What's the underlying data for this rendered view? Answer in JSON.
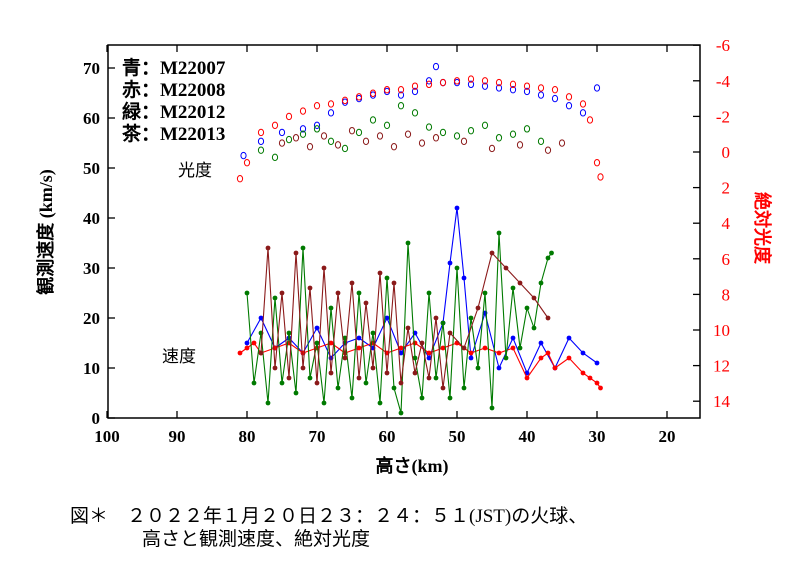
{
  "chart_data": {
    "type": "scatter+line",
    "xlabel": "高さ(km)",
    "ylabel_left": "観測速度 (km/s)",
    "ylabel_right": "絶対光度",
    "x_ticks": [
      100,
      90,
      80,
      70,
      60,
      50,
      40,
      30,
      20
    ],
    "xlim": [
      100,
      15
    ],
    "y_left_ticks": [
      0,
      10,
      20,
      30,
      40,
      50,
      60,
      70
    ],
    "ylim_left": [
      0,
      75
    ],
    "y_right_ticks": [
      -6,
      -4,
      -2,
      0,
      2,
      4,
      6,
      8,
      10,
      12,
      14
    ],
    "ylim_right": [
      15,
      -6
    ],
    "annotations": {
      "brightness": "光度",
      "velocity": "速度"
    },
    "legend": [
      {
        "label": "青：M22007",
        "color": "#0000ff"
      },
      {
        "label": "赤：M22008",
        "color": "#ff0000"
      },
      {
        "label": "緑：M22012",
        "color": "#007a00"
      },
      {
        "label": "茶：M22013",
        "color": "#8b1a1a"
      }
    ],
    "series": [
      {
        "name": "M22007",
        "color": "#0000ff",
        "magnitude": [
          [
            80.5,
            0.2
          ],
          [
            78,
            -0.6
          ],
          [
            75,
            -1.1
          ],
          [
            72,
            -1.3
          ],
          [
            70,
            -1.5
          ],
          [
            68,
            -2.2
          ],
          [
            66,
            -2.8
          ],
          [
            64,
            -3.0
          ],
          [
            62,
            -3.2
          ],
          [
            60,
            -3.4
          ],
          [
            58,
            -3.2
          ],
          [
            56,
            -3.4
          ],
          [
            54,
            -4.0
          ],
          [
            53,
            -4.8
          ],
          [
            52,
            -3.9
          ],
          [
            50,
            -3.9
          ],
          [
            48,
            -3.8
          ],
          [
            46,
            -3.7
          ],
          [
            44,
            -3.6
          ],
          [
            42,
            -3.5
          ],
          [
            40,
            -3.4
          ],
          [
            38,
            -3.2
          ],
          [
            36,
            -3.0
          ],
          [
            34,
            -2.6
          ],
          [
            32,
            -2.2
          ],
          [
            30,
            -3.6
          ]
        ],
        "velocity": [
          [
            80,
            15
          ],
          [
            78,
            20
          ],
          [
            76,
            14
          ],
          [
            74,
            16
          ],
          [
            72,
            13
          ],
          [
            70,
            18
          ],
          [
            68,
            12
          ],
          [
            66,
            15
          ],
          [
            64,
            16
          ],
          [
            62,
            14
          ],
          [
            60,
            20
          ],
          [
            58,
            13
          ],
          [
            56,
            17
          ],
          [
            54,
            12
          ],
          [
            52,
            19
          ],
          [
            51,
            31
          ],
          [
            50,
            42
          ],
          [
            49,
            28
          ],
          [
            48,
            12
          ],
          [
            46,
            21
          ],
          [
            44,
            10
          ],
          [
            42,
            16
          ],
          [
            40,
            9
          ],
          [
            38,
            15
          ],
          [
            36,
            10
          ],
          [
            34,
            16
          ],
          [
            32,
            13
          ],
          [
            30,
            11
          ]
        ]
      },
      {
        "name": "M22008",
        "color": "#ff0000",
        "magnitude": [
          [
            81,
            1.5
          ],
          [
            80,
            0.6
          ],
          [
            78,
            -1.1
          ],
          [
            76,
            -1.5
          ],
          [
            74,
            -2.0
          ],
          [
            72,
            -2.3
          ],
          [
            70,
            -2.6
          ],
          [
            68,
            -2.7
          ],
          [
            66,
            -2.9
          ],
          [
            64,
            -3.1
          ],
          [
            62,
            -3.3
          ],
          [
            60,
            -3.5
          ],
          [
            58,
            -3.5
          ],
          [
            56,
            -3.7
          ],
          [
            54,
            -3.8
          ],
          [
            52,
            -3.9
          ],
          [
            50,
            -4.0
          ],
          [
            48,
            -4.1
          ],
          [
            46,
            -4.0
          ],
          [
            44,
            -3.9
          ],
          [
            42,
            -3.8
          ],
          [
            40,
            -3.7
          ],
          [
            38,
            -3.6
          ],
          [
            36,
            -3.5
          ],
          [
            34,
            -3.1
          ],
          [
            32,
            -2.7
          ],
          [
            31,
            -1.8
          ],
          [
            30,
            0.6
          ],
          [
            29.5,
            1.4
          ]
        ],
        "velocity": [
          [
            81,
            13
          ],
          [
            80,
            14
          ],
          [
            79,
            15
          ],
          [
            78,
            13
          ],
          [
            76,
            14
          ],
          [
            74,
            15
          ],
          [
            72,
            13
          ],
          [
            70,
            14
          ],
          [
            68,
            15
          ],
          [
            66,
            13
          ],
          [
            64,
            14
          ],
          [
            62,
            15
          ],
          [
            60,
            13
          ],
          [
            58,
            14
          ],
          [
            56,
            15
          ],
          [
            54,
            13
          ],
          [
            52,
            14
          ],
          [
            50,
            15
          ],
          [
            48,
            13
          ],
          [
            46,
            14
          ],
          [
            44,
            13
          ],
          [
            42,
            14
          ],
          [
            40,
            8
          ],
          [
            38,
            12
          ],
          [
            37,
            13
          ],
          [
            36,
            10
          ],
          [
            34,
            12
          ],
          [
            32,
            9
          ],
          [
            31,
            8
          ],
          [
            30,
            7
          ],
          [
            29.5,
            6
          ]
        ]
      },
      {
        "name": "M22012",
        "color": "#007a00",
        "magnitude": [
          [
            78,
            -0.1
          ],
          [
            76,
            0.3
          ],
          [
            74,
            -0.7
          ],
          [
            72,
            -1.0
          ],
          [
            70,
            -1.3
          ],
          [
            68,
            -0.6
          ],
          [
            66,
            -0.2
          ],
          [
            64,
            -1.1
          ],
          [
            62,
            -1.8
          ],
          [
            60,
            -1.5
          ],
          [
            58,
            -2.6
          ],
          [
            56,
            -2.2
          ],
          [
            54,
            -1.4
          ],
          [
            52,
            -1.1
          ],
          [
            50,
            -0.9
          ],
          [
            48,
            -1.2
          ],
          [
            46,
            -1.5
          ],
          [
            44,
            -0.8
          ],
          [
            42,
            -1.0
          ],
          [
            40,
            -1.3
          ],
          [
            38,
            -0.6
          ]
        ],
        "velocity": [
          [
            80,
            25
          ],
          [
            79,
            7
          ],
          [
            78,
            17
          ],
          [
            77,
            3
          ],
          [
            76,
            24
          ],
          [
            75,
            7
          ],
          [
            74,
            17
          ],
          [
            73,
            5
          ],
          [
            72,
            34
          ],
          [
            71,
            8
          ],
          [
            70,
            15
          ],
          [
            69,
            3
          ],
          [
            68,
            22
          ],
          [
            67,
            6
          ],
          [
            66,
            16
          ],
          [
            65,
            4
          ],
          [
            64,
            25
          ],
          [
            63,
            7
          ],
          [
            62,
            17
          ],
          [
            61,
            3
          ],
          [
            60,
            28
          ],
          [
            59,
            6
          ],
          [
            58,
            1
          ],
          [
            57,
            35
          ],
          [
            56,
            12
          ],
          [
            55,
            4
          ],
          [
            54,
            25
          ],
          [
            53,
            8
          ],
          [
            52,
            19
          ],
          [
            51,
            4
          ],
          [
            50,
            30
          ],
          [
            49,
            6
          ],
          [
            48,
            20
          ],
          [
            47,
            10
          ],
          [
            46,
            25
          ],
          [
            45,
            2
          ],
          [
            44,
            37
          ],
          [
            43,
            12
          ],
          [
            42,
            26
          ],
          [
            41,
            14
          ],
          [
            40,
            22
          ],
          [
            39,
            18
          ],
          [
            38,
            27
          ],
          [
            37,
            32
          ],
          [
            36.5,
            33
          ]
        ]
      },
      {
        "name": "M22013",
        "color": "#8b1a1a",
        "magnitude": [
          [
            75,
            -0.5
          ],
          [
            73,
            -0.8
          ],
          [
            71,
            -0.3
          ],
          [
            69,
            -0.9
          ],
          [
            67,
            -0.4
          ],
          [
            65,
            -1.2
          ],
          [
            63,
            -0.6
          ],
          [
            61,
            -0.9
          ],
          [
            59,
            -0.3
          ],
          [
            57,
            -1.0
          ],
          [
            55,
            -0.5
          ],
          [
            53,
            -0.8
          ],
          [
            49,
            -0.6
          ],
          [
            45,
            -0.2
          ],
          [
            41,
            -0.4
          ],
          [
            37,
            -0.1
          ],
          [
            35,
            -0.5
          ]
        ],
        "velocity": [
          [
            78,
            13
          ],
          [
            77,
            34
          ],
          [
            76,
            10
          ],
          [
            75,
            25
          ],
          [
            74,
            8
          ],
          [
            73,
            33
          ],
          [
            72,
            10
          ],
          [
            71,
            26
          ],
          [
            70,
            7
          ],
          [
            69,
            30
          ],
          [
            68,
            9
          ],
          [
            67,
            25
          ],
          [
            66,
            12
          ],
          [
            65,
            27
          ],
          [
            64,
            8
          ],
          [
            63,
            23
          ],
          [
            62,
            10
          ],
          [
            61,
            29
          ],
          [
            60,
            9
          ],
          [
            59,
            27
          ],
          [
            58,
            7
          ],
          [
            57,
            18
          ],
          [
            56,
            9
          ],
          [
            55,
            15
          ],
          [
            54,
            8
          ],
          [
            53,
            20
          ],
          [
            52,
            6
          ],
          [
            51,
            17
          ],
          [
            49,
            14
          ],
          [
            47,
            22
          ],
          [
            45,
            33
          ],
          [
            43,
            30
          ],
          [
            41,
            27
          ],
          [
            39,
            24
          ],
          [
            37,
            20
          ]
        ]
      }
    ]
  },
  "caption": {
    "line1": "図＊　２０２２年１月２０日２３：２４：５１(JST)の火球、",
    "line2": "高さと観測速度、絶対光度"
  }
}
